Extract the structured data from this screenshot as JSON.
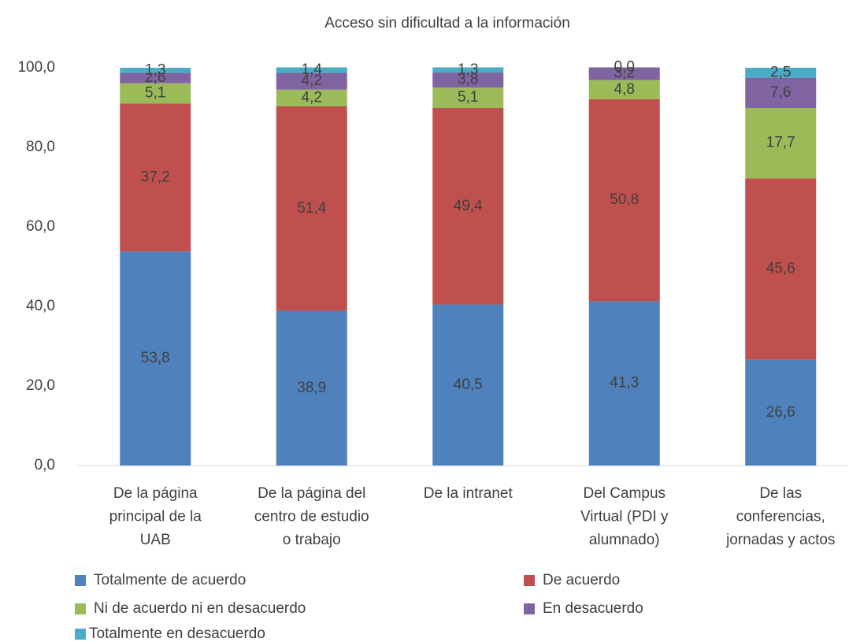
{
  "chart_data": {
    "type": "stacked-bar",
    "title": "Acceso sin dificultad a la información",
    "categories": [
      "De la página\nprincipal de la\nUAB",
      "De la página del\ncentro de estudio\no trabajo",
      "De la intranet",
      "Del Campus\nVirtual (PDI y\nalumnado)",
      "De las\nconferencias,\njornadas y actos"
    ],
    "series": [
      {
        "name": "Totalmente de acuerdo",
        "color": "#4f81bd",
        "values": [
          53.8,
          38.9,
          40.5,
          41.3,
          26.6
        ],
        "value_labels": [
          "53,8",
          "38,9",
          "40,5",
          "41,3",
          "26,6"
        ]
      },
      {
        "name": "De acuerdo",
        "color": "#c0504d",
        "values": [
          37.2,
          51.4,
          49.4,
          50.8,
          45.6
        ],
        "value_labels": [
          "37,2",
          "51,4",
          "49,4",
          "50,8",
          "45,6"
        ]
      },
      {
        "name": "Ni de acuerdo ni en desacuerdo",
        "color": "#9bbb59",
        "values": [
          5.1,
          4.2,
          5.1,
          4.8,
          17.7
        ],
        "value_labels": [
          "5,1",
          "4,2",
          "5,1",
          "4,8",
          "17,7"
        ]
      },
      {
        "name": "En desacuerdo",
        "color": "#8064a2",
        "values": [
          2.6,
          4.2,
          3.8,
          3.2,
          7.6
        ],
        "value_labels": [
          "2,6",
          "4,2",
          "3,8",
          "3,2",
          "7,6"
        ]
      },
      {
        "name": "Totalmente en desacuerdo",
        "color": "#4bacc6",
        "values": [
          1.3,
          1.4,
          1.3,
          0.0,
          2.5
        ],
        "value_labels": [
          "1,3",
          "1,4",
          "1,3",
          "0,0",
          "2,5"
        ]
      }
    ],
    "ylim": [
      0,
      100
    ],
    "yticks": [
      {
        "value": 0,
        "label": "0,0"
      },
      {
        "value": 20,
        "label": "20,0"
      },
      {
        "value": 40,
        "label": "40,0"
      },
      {
        "value": 60,
        "label": "60,0"
      },
      {
        "value": 80,
        "label": "80,0"
      },
      {
        "value": 100,
        "label": "100,0"
      }
    ],
    "grid": false
  }
}
